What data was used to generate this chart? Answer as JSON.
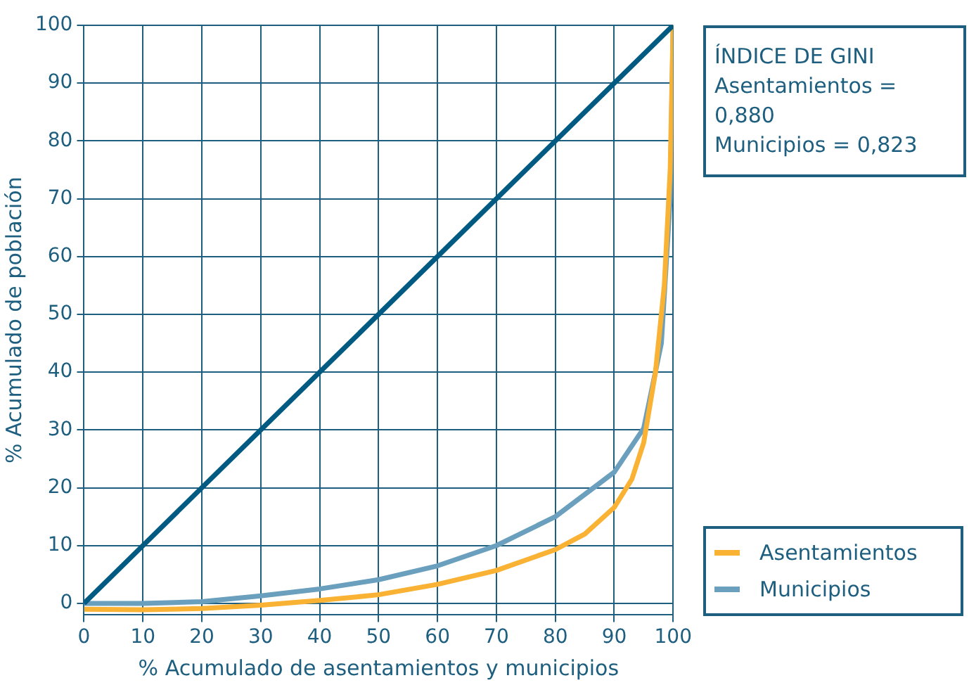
{
  "chart_data": {
    "type": "line",
    "xlabel": "% Acumulado de asentamientos y municipios",
    "ylabel": "% Acumulado de población",
    "annotations": [
      "ÍNDICE DE GINI",
      "Asentamientos = 0,880",
      "Municipios = 0,823"
    ],
    "xlim": [
      0,
      100
    ],
    "ylim": [
      -2,
      100
    ],
    "xticks": [
      0,
      10,
      20,
      30,
      40,
      50,
      60,
      70,
      80,
      90,
      100
    ],
    "yticks": [
      0,
      10,
      20,
      30,
      40,
      50,
      60,
      70,
      80,
      90,
      100
    ],
    "grid": true,
    "legend": "bottom right",
    "marker": "none",
    "line_style": "solid",
    "series": [
      {
        "color": "#005a82",
        "x": [
          0,
          100
        ],
        "values": [
          0,
          100
        ]
      },
      {
        "name": "Asentamientos",
        "color": "#f9b233",
        "x": [
          0,
          10,
          20,
          30,
          40,
          50,
          60,
          70,
          80,
          85,
          90,
          93,
          95,
          97,
          98.5,
          99.5,
          100
        ],
        "values": [
          -1,
          -1.1,
          -0.9,
          -0.3,
          0.5,
          1.5,
          3.3,
          5.7,
          9.3,
          12,
          16.6,
          21.5,
          27.8,
          40,
          55,
          75,
          100
        ]
      },
      {
        "name": "Municipios",
        "color": "#6a9fbd",
        "x": [
          0,
          10,
          20,
          30,
          40,
          50,
          60,
          70,
          80,
          90,
          95,
          98,
          99.5,
          100
        ],
        "values": [
          0,
          0,
          0.3,
          1.3,
          2.5,
          4.1,
          6.5,
          10,
          15,
          22.7,
          30.3,
          45,
          70,
          100
        ]
      }
    ]
  }
}
